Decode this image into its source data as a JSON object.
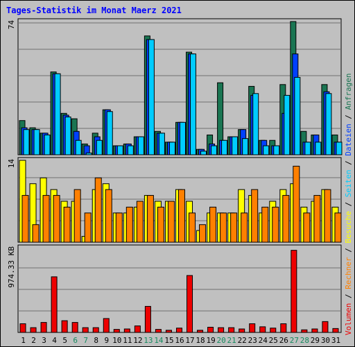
{
  "title": "Tages-Statistik im Monat Maerz 2021",
  "colors": {
    "anfragen": "#1a7552",
    "dateien": "#0040ff",
    "seiten": "#00ccff",
    "besuche": "#ffff00",
    "rechner": "#ff8000",
    "volumen": "#ee0000",
    "day_normal": "#000000",
    "day_weekend": "#138a5e"
  },
  "chart_data": [
    {
      "type": "bar",
      "panel": "top",
      "y_label": "74",
      "ylim": [
        0,
        74
      ],
      "legend": [
        "Anfragen",
        "Dateien",
        "Seiten"
      ],
      "categories": [
        "1",
        "2",
        "3",
        "4",
        "5",
        "6",
        "7",
        "8",
        "9",
        "10",
        "11",
        "12",
        "13",
        "14",
        "15",
        "16",
        "17",
        "18",
        "19",
        "20",
        "21",
        "22",
        "23",
        "24",
        "25",
        "26",
        "27",
        "28",
        "29",
        "30",
        "31"
      ],
      "series": [
        {
          "name": "Anfragen",
          "values": [
            19,
            15,
            12,
            46,
            23,
            20,
            6,
            12,
            25,
            5,
            6,
            10,
            66,
            13,
            7,
            18,
            57,
            3,
            11,
            40,
            10,
            14,
            38,
            8,
            8,
            39,
            74,
            13,
            11,
            39,
            11
          ]
        },
        {
          "name": "Dateien",
          "values": [
            15,
            14,
            12,
            45,
            22,
            13,
            5,
            10,
            25,
            5,
            6,
            10,
            64,
            12,
            7,
            18,
            56,
            3,
            6,
            8,
            10,
            14,
            33,
            8,
            5,
            23,
            56,
            7,
            11,
            35,
            7
          ]
        },
        {
          "name": "Seiten",
          "values": [
            14,
            14,
            11,
            45,
            21,
            8,
            1,
            8,
            24,
            5,
            5,
            10,
            64,
            12,
            7,
            18,
            56,
            2,
            5,
            8,
            10,
            9,
            34,
            5,
            5,
            33,
            43,
            7,
            7,
            34,
            7
          ]
        }
      ]
    },
    {
      "type": "bar",
      "panel": "middle",
      "y_label": "14",
      "ylim": [
        0,
        14
      ],
      "legend": [
        "Besuche",
        "Rechner"
      ],
      "categories": [
        "1",
        "2",
        "3",
        "4",
        "5",
        "6",
        "7",
        "8",
        "9",
        "10",
        "11",
        "12",
        "13",
        "14",
        "15",
        "16",
        "17",
        "18",
        "19",
        "20",
        "21",
        "22",
        "23",
        "24",
        "25",
        "26",
        "27",
        "28",
        "29",
        "30",
        "31"
      ],
      "series": [
        {
          "name": "Besuche",
          "values": [
            14,
            10,
            11,
            9,
            7,
            7,
            1,
            9,
            10,
            5,
            5,
            6,
            8,
            7,
            7,
            9,
            7,
            2,
            5,
            5,
            5,
            9,
            8,
            5,
            7,
            9,
            10,
            6,
            7,
            9,
            6
          ]
        },
        {
          "name": "Rechner",
          "values": [
            8,
            3,
            8,
            8,
            6,
            9,
            5,
            11,
            9,
            5,
            6,
            7,
            8,
            6,
            7,
            9,
            5,
            3,
            6,
            5,
            5,
            5,
            9,
            6,
            6,
            8,
            13,
            5,
            8,
            9,
            5
          ]
        }
      ]
    },
    {
      "type": "bar",
      "panel": "bottom",
      "y_label": "974.33 KB",
      "ylim": [
        0,
        974.33
      ],
      "legend": [
        "Volumen"
      ],
      "categories": [
        "1",
        "2",
        "3",
        "4",
        "5",
        "6",
        "7",
        "8",
        "9",
        "10",
        "11",
        "12",
        "13",
        "14",
        "15",
        "16",
        "17",
        "18",
        "19",
        "20",
        "21",
        "22",
        "23",
        "24",
        "25",
        "26",
        "27",
        "28",
        "29",
        "30",
        "31"
      ],
      "series": [
        {
          "name": "Volumen",
          "values": [
            100,
            55,
            115,
            640,
            135,
            115,
            55,
            55,
            160,
            35,
            40,
            75,
            300,
            35,
            25,
            50,
            655,
            25,
            60,
            55,
            55,
            40,
            100,
            65,
            50,
            100,
            945,
            30,
            40,
            125,
            45
          ]
        }
      ]
    }
  ],
  "days": [
    "1",
    "2",
    "3",
    "4",
    "5",
    "6",
    "7",
    "8",
    "9",
    "10",
    "11",
    "12",
    "13",
    "14",
    "15",
    "16",
    "17",
    "18",
    "19",
    "20",
    "21",
    "22",
    "23",
    "24",
    "25",
    "26",
    "27",
    "28",
    "29",
    "30",
    "31"
  ],
  "weekend_days": [
    "6",
    "7",
    "13",
    "14",
    "20",
    "21",
    "27",
    "28"
  ]
}
